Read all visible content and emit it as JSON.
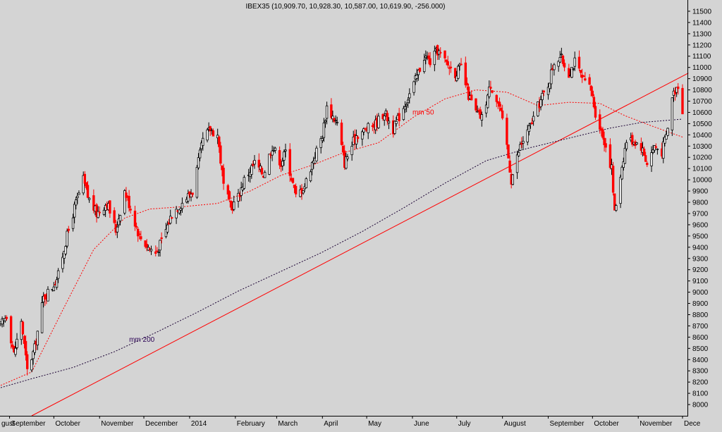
{
  "chart_data": {
    "type": "candlestick",
    "title": "IBEX35 (10,909.70, 10,928.30, 10,587.00, 10,619.90, -256.000)",
    "y_axis": {
      "position": "right",
      "range": [
        7900,
        11600
      ],
      "ticks": [
        8000,
        8100,
        8200,
        8300,
        8400,
        8500,
        8600,
        8700,
        8800,
        8900,
        9000,
        9100,
        9200,
        9300,
        9400,
        9500,
        9600,
        9700,
        9800,
        9900,
        10000,
        10100,
        10200,
        10300,
        10400,
        10500,
        10600,
        10700,
        10800,
        10900,
        11000,
        11100,
        11200,
        11300,
        11400,
        11500
      ]
    },
    "x_axis": {
      "month_labels": [
        "gust",
        "September",
        "October",
        "November",
        "December",
        "2014",
        "February",
        "March",
        "April",
        "May",
        "June",
        "July",
        "August",
        "September",
        "October",
        "November",
        "Dece"
      ],
      "first_date": "2013-08-26",
      "last_date": "2014-12-01"
    },
    "bar_colors": {
      "up": "#000000",
      "down": "#ff0000"
    },
    "price_anchors": [
      [
        "2013-08-26",
        8700
      ],
      [
        "2013-08-30",
        8800
      ],
      [
        "2013-09-04",
        8450
      ],
      [
        "2013-09-09",
        8750
      ],
      [
        "2013-09-13",
        8300
      ],
      [
        "2013-09-18",
        8500
      ],
      [
        "2013-09-24",
        8950
      ],
      [
        "2013-09-30",
        9050
      ],
      [
        "2013-10-04",
        9150
      ],
      [
        "2013-10-09",
        9450
      ],
      [
        "2013-10-15",
        9750
      ],
      [
        "2013-10-21",
        10000
      ],
      [
        "2013-10-24",
        9850
      ],
      [
        "2013-10-30",
        9700
      ],
      [
        "2013-11-06",
        9800
      ],
      [
        "2013-11-12",
        9550
      ],
      [
        "2013-11-18",
        9900
      ],
      [
        "2013-11-22",
        9750
      ],
      [
        "2013-11-28",
        9500
      ],
      [
        "2013-12-04",
        9400
      ],
      [
        "2013-12-09",
        9350
      ],
      [
        "2013-12-13",
        9450
      ],
      [
        "2013-12-20",
        9700
      ],
      [
        "2013-12-27",
        9800
      ],
      [
        "2014-01-03",
        9900
      ],
      [
        "2014-01-10",
        10350
      ],
      [
        "2014-01-15",
        10450
      ],
      [
        "2014-01-20",
        10400
      ],
      [
        "2014-01-24",
        9950
      ],
      [
        "2014-01-29",
        9750
      ],
      [
        "2014-02-03",
        9850
      ],
      [
        "2014-02-07",
        10000
      ],
      [
        "2014-02-14",
        10150
      ],
      [
        "2014-02-20",
        10050
      ],
      [
        "2014-02-26",
        10300
      ],
      [
        "2014-03-04",
        10150
      ],
      [
        "2014-03-07",
        10250
      ],
      [
        "2014-03-14",
        9850
      ],
      [
        "2014-03-20",
        9950
      ],
      [
        "2014-03-25",
        10150
      ],
      [
        "2014-04-01",
        10400
      ],
      [
        "2014-04-04",
        10650
      ],
      [
        "2014-04-11",
        10500
      ],
      [
        "2014-04-16",
        10150
      ],
      [
        "2014-04-24",
        10400
      ],
      [
        "2014-05-01",
        10450
      ],
      [
        "2014-05-07",
        10500
      ],
      [
        "2014-05-13",
        10600
      ],
      [
        "2014-05-19",
        10450
      ],
      [
        "2014-05-26",
        10650
      ],
      [
        "2014-06-02",
        10850
      ],
      [
        "2014-06-09",
        11100
      ],
      [
        "2014-06-13",
        11050
      ],
      [
        "2014-06-18",
        11150
      ],
      [
        "2014-06-23",
        11050
      ],
      [
        "2014-06-30",
        10950
      ],
      [
        "2014-07-04",
        11000
      ],
      [
        "2014-07-09",
        10750
      ],
      [
        "2014-07-14",
        10600
      ],
      [
        "2014-07-18",
        10550
      ],
      [
        "2014-07-24",
        10850
      ],
      [
        "2014-07-30",
        10650
      ],
      [
        "2014-08-04",
        10300
      ],
      [
        "2014-08-07",
        10000
      ],
      [
        "2014-08-13",
        10300
      ],
      [
        "2014-08-19",
        10450
      ],
      [
        "2014-08-25",
        10650
      ],
      [
        "2014-09-01",
        10850
      ],
      [
        "2014-09-05",
        11050
      ],
      [
        "2014-09-09",
        11100
      ],
      [
        "2014-09-15",
        10950
      ],
      [
        "2014-09-19",
        11050
      ],
      [
        "2014-09-24",
        10900
      ],
      [
        "2014-09-30",
        10800
      ],
      [
        "2014-10-03",
        10600
      ],
      [
        "2014-10-09",
        10350
      ],
      [
        "2014-10-14",
        10100
      ],
      [
        "2014-10-16",
        9700
      ],
      [
        "2014-10-20",
        10050
      ],
      [
        "2014-10-24",
        10350
      ],
      [
        "2014-10-29",
        10350
      ],
      [
        "2014-11-03",
        10300
      ],
      [
        "2014-11-07",
        10150
      ],
      [
        "2014-11-12",
        10300
      ],
      [
        "2014-11-17",
        10250
      ],
      [
        "2014-11-21",
        10450
      ],
      [
        "2014-11-24",
        10750
      ],
      [
        "2014-11-28",
        10850
      ],
      [
        "2014-12-01",
        10620
      ]
    ],
    "moving_averages": [
      {
        "name": "mm 50",
        "color": "#ff0000",
        "points": [
          [
            "2013-08-26",
            8170
          ],
          [
            "2013-09-16",
            8290
          ],
          [
            "2013-10-07",
            8840
          ],
          [
            "2013-10-28",
            9380
          ],
          [
            "2013-11-18",
            9660
          ],
          [
            "2013-12-05",
            9740
          ],
          [
            "2013-12-27",
            9760
          ],
          [
            "2014-01-20",
            9790
          ],
          [
            "2014-02-11",
            9900
          ],
          [
            "2014-03-04",
            10040
          ],
          [
            "2014-03-25",
            10130
          ],
          [
            "2014-04-15",
            10240
          ],
          [
            "2014-05-09",
            10330
          ],
          [
            "2014-06-02",
            10560
          ],
          [
            "2014-06-23",
            10720
          ],
          [
            "2014-07-14",
            10800
          ],
          [
            "2014-08-04",
            10780
          ],
          [
            "2014-08-25",
            10660
          ],
          [
            "2014-09-15",
            10690
          ],
          [
            "2014-10-06",
            10680
          ],
          [
            "2014-10-23",
            10570
          ],
          [
            "2014-11-10",
            10480
          ],
          [
            "2014-12-01",
            10380
          ]
        ]
      },
      {
        "name": "mm 200",
        "color": "#1a0033",
        "points": [
          [
            "2013-08-26",
            8150
          ],
          [
            "2013-09-16",
            8230
          ],
          [
            "2013-10-14",
            8330
          ],
          [
            "2013-11-11",
            8470
          ],
          [
            "2013-12-09",
            8640
          ],
          [
            "2014-01-06",
            8820
          ],
          [
            "2014-02-03",
            9010
          ],
          [
            "2014-03-03",
            9180
          ],
          [
            "2014-03-31",
            9350
          ],
          [
            "2014-04-28",
            9540
          ],
          [
            "2014-05-26",
            9750
          ],
          [
            "2014-06-23",
            9970
          ],
          [
            "2014-07-21",
            10170
          ],
          [
            "2014-08-18",
            10280
          ],
          [
            "2014-09-15",
            10370
          ],
          [
            "2014-10-13",
            10460
          ],
          [
            "2014-11-03",
            10510
          ],
          [
            "2014-12-01",
            10540
          ]
        ]
      }
    ],
    "trendline": {
      "color": "#ff0000",
      "start": [
        "2013-09-16",
        7900
      ],
      "end": [
        "2014-12-05",
        10950
      ]
    },
    "annotations": [
      {
        "text": "mm 50",
        "anchor": [
          "2014-06-01",
          10580
        ],
        "color": "#ff0000"
      },
      {
        "text": "mm 200",
        "anchor": [
          "2013-11-21",
          8560
        ],
        "color": "#2a0055"
      }
    ]
  }
}
